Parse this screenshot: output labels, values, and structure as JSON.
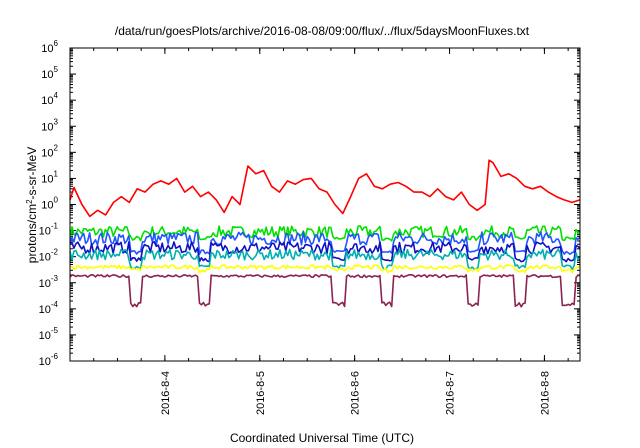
{
  "chart_data": {
    "type": "line",
    "title": "/data/run/goesPlots/archive/2016-08-08/09:00/flux/../flux/5daysMoonFluxes.txt",
    "xlabel": "Coordinated Universal Time (UTC)",
    "ylabel_main": "protons/cm",
    "ylabel_sup": "2",
    "ylabel_tail": "-s-sr-MeV",
    "y_scale": "log",
    "ylim": [
      1e-06,
      1000000.0
    ],
    "xlim": [
      "2016-08-03 00:00",
      "2016-08-08 09:00"
    ],
    "x_ticks": [
      "2016-8-4",
      "2016-8-5",
      "2016-8-6",
      "2016-8-7",
      "2016-8-8"
    ],
    "y_ticks": [
      {
        "base": "10",
        "exp": "-6"
      },
      {
        "base": "10",
        "exp": "-5"
      },
      {
        "base": "10",
        "exp": "-4"
      },
      {
        "base": "10",
        "exp": "-3"
      },
      {
        "base": "10",
        "exp": "-2"
      },
      {
        "base": "10",
        "exp": "-1"
      },
      {
        "base": "10",
        "exp": "0"
      },
      {
        "base": "10",
        "exp": "1"
      },
      {
        "base": "10",
        "exp": "2"
      },
      {
        "base": "10",
        "exp": "3"
      },
      {
        "base": "10",
        "exp": "4"
      },
      {
        "base": "10",
        "exp": "5"
      },
      {
        "base": "10",
        "exp": "6"
      }
    ],
    "grid": false,
    "legend": "none",
    "series": [
      {
        "color": "#ff0000",
        "points": [
          [
            "2016-08-03 00:00",
            1.5
          ],
          [
            "2016-08-03 01:00",
            4.5
          ],
          [
            "2016-08-03 03:00",
            1.0
          ],
          [
            "2016-08-03 05:00",
            0.35
          ],
          [
            "2016-08-03 07:00",
            0.6
          ],
          [
            "2016-08-03 09:00",
            0.4
          ],
          [
            "2016-08-03 11:00",
            1.2
          ],
          [
            "2016-08-03 13:00",
            2.0
          ],
          [
            "2016-08-03 15:00",
            1.2
          ],
          [
            "2016-08-03 17:00",
            4.0
          ],
          [
            "2016-08-03 19:00",
            3.0
          ],
          [
            "2016-08-03 21:00",
            6.0
          ],
          [
            "2016-08-03 23:00",
            8.0
          ],
          [
            "2016-08-04 01:00",
            6.0
          ],
          [
            "2016-08-04 03:00",
            10.0
          ],
          [
            "2016-08-04 05:00",
            3.0
          ],
          [
            "2016-08-04 07:00",
            5.0
          ],
          [
            "2016-08-04 09:00",
            2.0
          ],
          [
            "2016-08-04 11:00",
            3.0
          ],
          [
            "2016-08-04 13:00",
            1.5
          ],
          [
            "2016-08-04 15:00",
            0.5
          ],
          [
            "2016-08-04 17:00",
            2.0
          ],
          [
            "2016-08-04 19:00",
            1.0
          ],
          [
            "2016-08-04 21:00",
            30.0
          ],
          [
            "2016-08-04 23:00",
            15.0
          ],
          [
            "2016-08-05 01:00",
            20.0
          ],
          [
            "2016-08-05 03:00",
            5.0
          ],
          [
            "2016-08-05 05:00",
            3.0
          ],
          [
            "2016-08-05 07:00",
            8.0
          ],
          [
            "2016-08-05 09:00",
            6.0
          ],
          [
            "2016-08-05 11:00",
            9.0
          ],
          [
            "2016-08-05 13:00",
            10.0
          ],
          [
            "2016-08-05 15:00",
            4.0
          ],
          [
            "2016-08-05 17:00",
            3.0
          ],
          [
            "2016-08-05 19:00",
            1.0
          ],
          [
            "2016-08-05 21:00",
            0.45
          ],
          [
            "2016-08-05 23:00",
            2.0
          ],
          [
            "2016-08-06 01:00",
            10.0
          ],
          [
            "2016-08-06 03:00",
            15.0
          ],
          [
            "2016-08-06 05:00",
            5.0
          ],
          [
            "2016-08-06 07:00",
            4.0
          ],
          [
            "2016-08-06 09:00",
            6.0
          ],
          [
            "2016-08-06 11:00",
            7.0
          ],
          [
            "2016-08-06 13:00",
            5.0
          ],
          [
            "2016-08-06 15:00",
            3.0
          ],
          [
            "2016-08-06 17:00",
            3.0
          ],
          [
            "2016-08-06 19:00",
            2.0
          ],
          [
            "2016-08-06 21:00",
            4.0
          ],
          [
            "2016-08-06 23:00",
            2.0
          ],
          [
            "2016-08-07 01:00",
            1.5
          ],
          [
            "2016-08-07 03:00",
            3.0
          ],
          [
            "2016-08-07 05:00",
            1.0
          ],
          [
            "2016-08-07 07:00",
            0.6
          ],
          [
            "2016-08-07 09:00",
            1.0
          ],
          [
            "2016-08-07 10:00",
            50.0
          ],
          [
            "2016-08-07 11:00",
            40.0
          ],
          [
            "2016-08-07 13:00",
            12.0
          ],
          [
            "2016-08-07 15:00",
            15.0
          ],
          [
            "2016-08-07 17:00",
            10.0
          ],
          [
            "2016-08-07 19:00",
            5.0
          ],
          [
            "2016-08-07 21:00",
            4.0
          ],
          [
            "2016-08-07 23:00",
            5.0
          ],
          [
            "2016-08-08 01:00",
            3.0
          ],
          [
            "2016-08-08 03:00",
            2.0
          ],
          [
            "2016-08-08 05:00",
            1.5
          ],
          [
            "2016-08-08 07:00",
            1.2
          ],
          [
            "2016-08-08 09:00",
            1.5
          ]
        ]
      },
      {
        "color": "#00e000",
        "level": 0.09,
        "spread": 0.45,
        "dips": 0.05
      },
      {
        "color": "#2255ff",
        "level": 0.05,
        "spread": 0.5,
        "dips": 0.015
      },
      {
        "color": "#1010c0",
        "level": 0.022,
        "spread": 0.45,
        "dips": 0.008
      },
      {
        "color": "#00b0b0",
        "level": 0.012,
        "spread": 0.4,
        "dips": 0.004
      },
      {
        "color": "#ffff00",
        "level": 0.004,
        "spread": 0.15,
        "dips": 0.003
      },
      {
        "color": "#8b2252",
        "level": 0.0018,
        "spread": 0.1,
        "dips": 0.00015
      }
    ]
  }
}
